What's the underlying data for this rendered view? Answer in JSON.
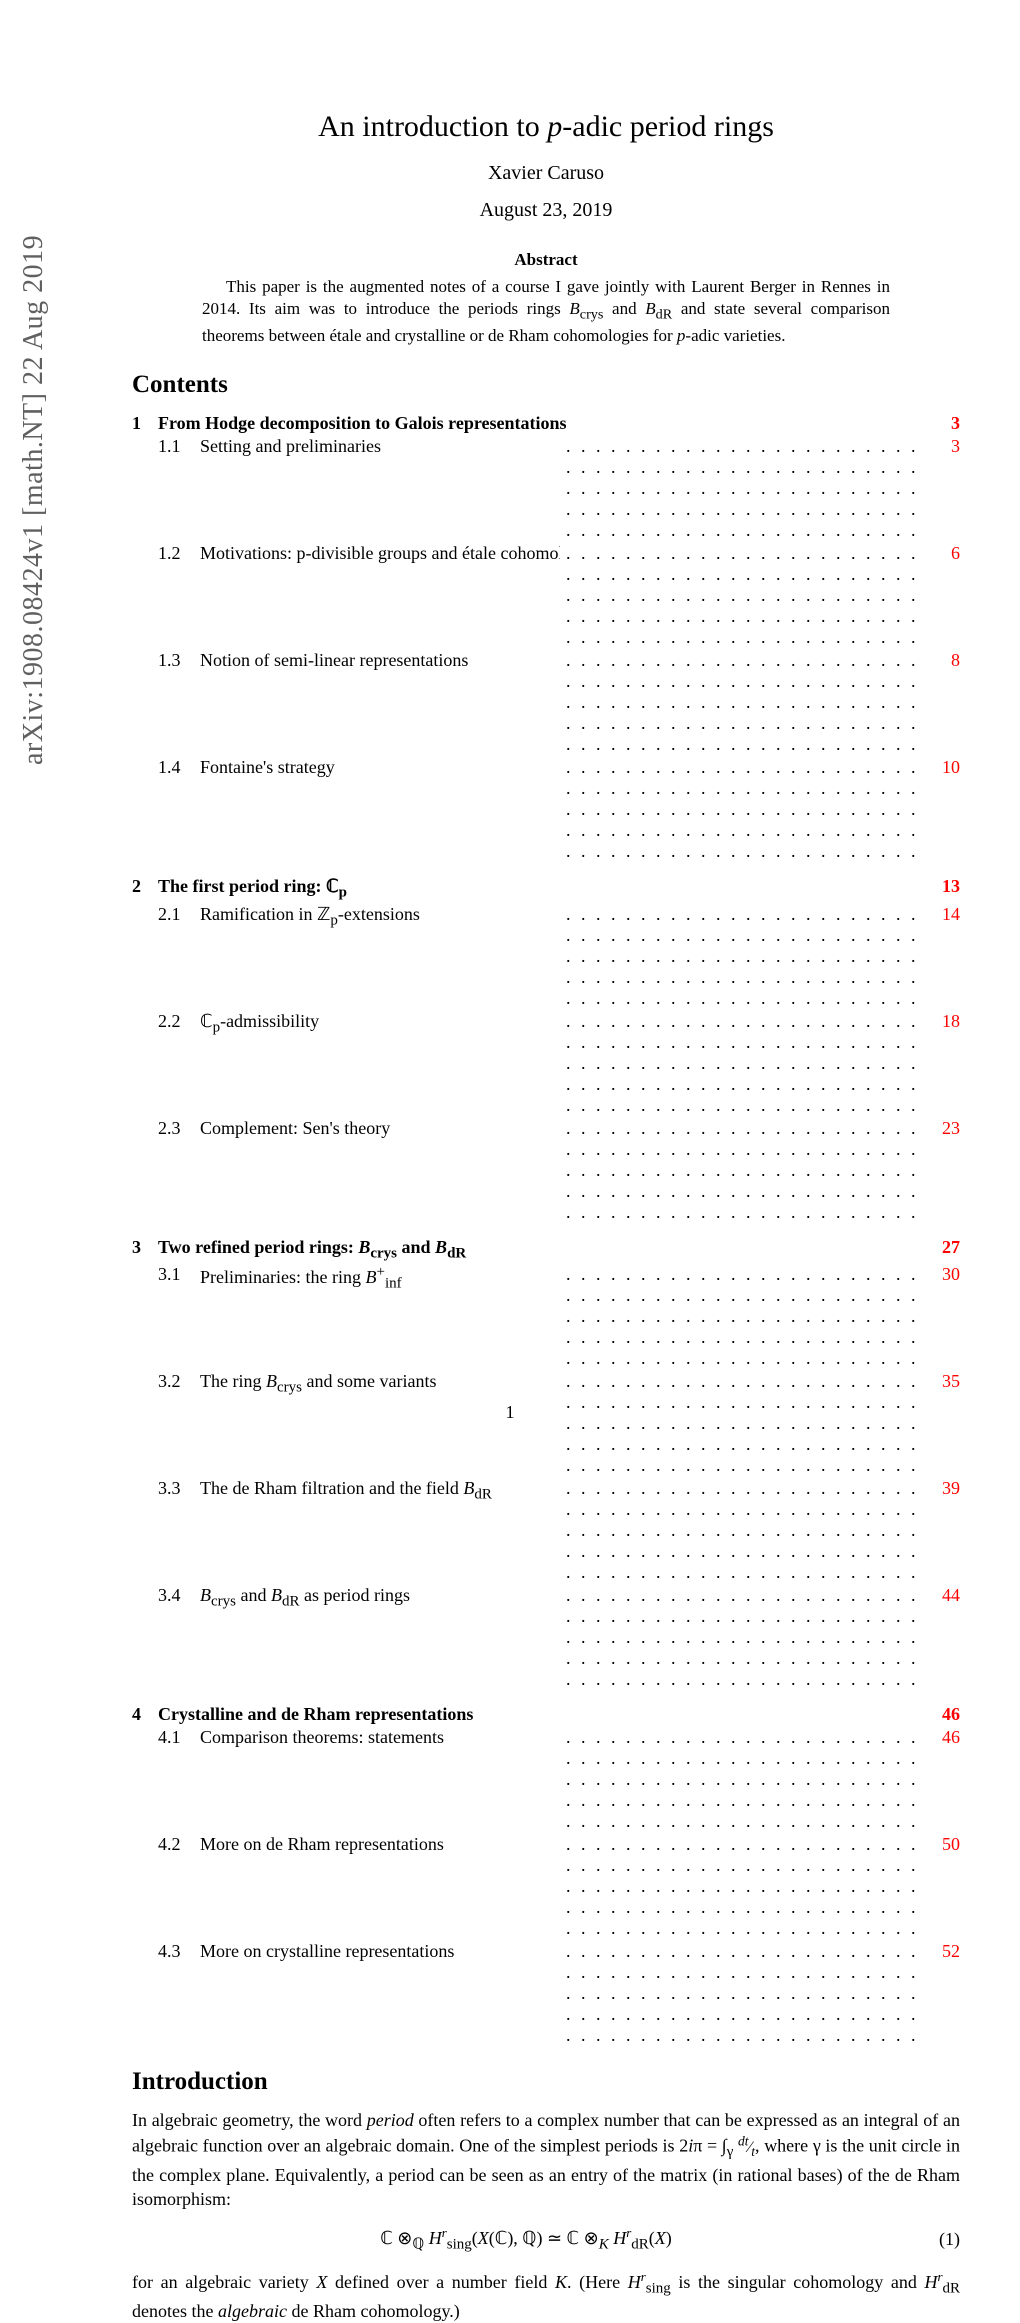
{
  "arxiv_id": "arXiv:1908.08424v1  [math.NT]  22 Aug 2019",
  "title_pre": "An introduction to ",
  "title_var": "p",
  "title_post": "-adic period rings",
  "author": "Xavier Caruso",
  "date": "August 23, 2019",
  "abstract_heading": "Abstract",
  "abstract_text": "This paper is the augmented notes of a course I gave jointly with Laurent Berger in Rennes in 2014. Its aim was to introduce the periods rings B₍crys₎ and B₍dR₎ and state several comparison theorems between étale and crystalline or de Rham cohomologies for p-adic varieties.",
  "contents_heading": "Contents",
  "toc": {
    "chapters": [
      {
        "num": "1",
        "title": "From Hodge decomposition to Galois representations",
        "page": "3",
        "page_red": true,
        "subs": [
          {
            "num": "1.1",
            "title": "Setting and preliminaries",
            "page": "3",
            "page_red": true
          },
          {
            "num": "1.2",
            "title": "Motivations: p-divisible groups and étale cohomology",
            "page": "6",
            "page_red": true
          },
          {
            "num": "1.3",
            "title": "Notion of semi-linear representations",
            "page": "8",
            "page_red": true
          },
          {
            "num": "1.4",
            "title": "Fontaine's strategy",
            "page": "10",
            "page_red": true
          }
        ]
      },
      {
        "num": "2",
        "title_html": "The first period ring: ℂ<sub>p</sub>",
        "page": "13",
        "page_red": true,
        "subs": [
          {
            "num": "2.1",
            "title_html": "Ramification in ℤ<sub>p</sub>-extensions",
            "page": "14",
            "page_red": true
          },
          {
            "num": "2.2",
            "title_html": "ℂ<sub>p</sub>-admissibility",
            "page": "18",
            "page_red": true
          },
          {
            "num": "2.3",
            "title": "Complement: Sen's theory",
            "page": "23",
            "page_red": true
          }
        ]
      },
      {
        "num": "3",
        "title_html": "Two refined period rings: <span class='math'>B</span><sub>crys</sub> and <span class='math'>B</span><sub>dR</sub>",
        "page": "27",
        "page_red": true,
        "subs": [
          {
            "num": "3.1",
            "title_html": "Preliminaries: the ring <span class='math'>B</span><sup>+</sup><sub>inf</sub>",
            "page": "30",
            "page_red": true
          },
          {
            "num": "3.2",
            "title_html": "The ring <span class='math'>B</span><sub>crys</sub> and some variants",
            "page": "35",
            "page_red": true
          },
          {
            "num": "3.3",
            "title_html": "The de Rham filtration and the field <span class='math'>B</span><sub>dR</sub>",
            "page": "39",
            "page_red": true
          },
          {
            "num": "3.4",
            "title_html": "<span class='math'>B</span><sub>crys</sub> and <span class='math'>B</span><sub>dR</sub> as period rings",
            "page": "44",
            "page_red": true
          }
        ]
      },
      {
        "num": "4",
        "title": "Crystalline and de Rham representations",
        "page": "46",
        "page_red": true,
        "subs": [
          {
            "num": "4.1",
            "title": "Comparison theorems: statements",
            "page": "46",
            "page_red": true
          },
          {
            "num": "4.2",
            "title": "More on de Rham representations",
            "page": "50",
            "page_red": true
          },
          {
            "num": "4.3",
            "title": "More on crystalline representations",
            "page": "52",
            "page_red": true
          }
        ]
      }
    ]
  },
  "intro_heading": "Introduction",
  "intro_p1": "In algebraic geometry, the word <i>period</i> often refers to a complex number that can be expressed as an integral of an algebraic function over an algebraic domain. One of the simplest periods is 2<i>i</i>π = ∫<sub>γ</sub> <span style='font-size:0.9em;'><sup><i>dt</i></sup>⁄<sub><i>t</i></sub></span>, where γ is the unit circle in the complex plane. Equivalently, a period can be seen as an entry of the matrix (in rational bases) of the de Rham isomorphism:",
  "equation_html": "ℂ ⊗<sub>ℚ</sub> <i>H</i><span class='mathsup'><i>r</i></span><sub>sing</sub>(<i>X</i>(ℂ), ℚ) ≃ ℂ ⊗<sub><i>K</i></sub> <i>H</i><span class='mathsup'><i>r</i></span><sub>dR</sub>(<i>X</i>)",
  "equation_num": "(1)",
  "intro_p2": "for an algebraic variety <i>X</i> defined over a number field <i>K</i>. (Here <i>H</i><span class='mathsup'><i>r</i></span><sub>sing</sub> is the singular cohomology and <i>H</i><span class='mathsup'><i>r</i></span><sub>dR</sub> denotes the <i>algebraic</i> de Rham cohomology.)",
  "page_number": "1",
  "colors": {
    "link_red": "#ff0000",
    "text": "#000000",
    "sidebar_gray": "#606060",
    "bg": "#ffffff"
  },
  "fontsizes": {
    "title": 30,
    "author": 20,
    "date": 20,
    "abstract_head": 17,
    "abstract_body": 17,
    "section_head": 25,
    "toc": 18,
    "body": 18,
    "arxiv": 28
  }
}
